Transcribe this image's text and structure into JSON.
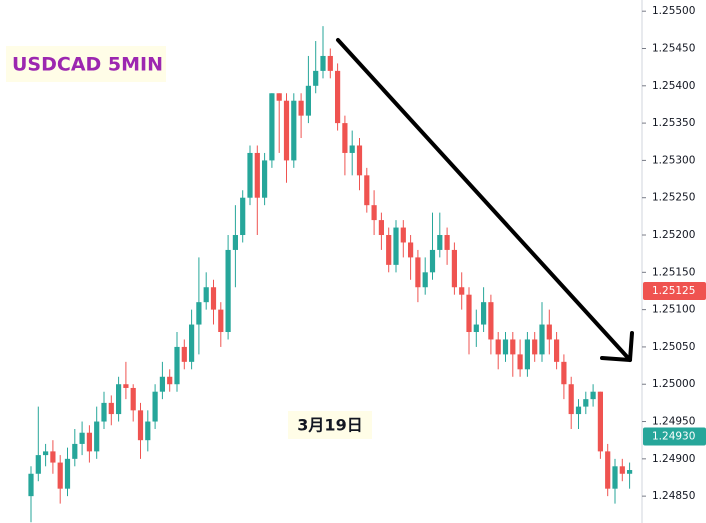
{
  "chart_data": {
    "type": "candlestick",
    "title": "USDCAD 5MIN",
    "annotation": "3月19日",
    "up_color": "#26a69a",
    "down_color": "#ef5350",
    "ylim": [
      1.24814,
      1.25515
    ],
    "yticks": [
      {
        "value": 1.255,
        "label": "1.25500"
      },
      {
        "value": 1.2545,
        "label": "1.25450"
      },
      {
        "value": 1.254,
        "label": "1.25400"
      },
      {
        "value": 1.2535,
        "label": "1.25350"
      },
      {
        "value": 1.253,
        "label": "1.25300"
      },
      {
        "value": 1.2525,
        "label": "1.25250"
      },
      {
        "value": 1.252,
        "label": "1.25200"
      },
      {
        "value": 1.2515,
        "label": "1.25150"
      },
      {
        "value": 1.251,
        "label": "1.25100"
      },
      {
        "value": 1.2505,
        "label": "1.25050"
      },
      {
        "value": 1.25,
        "label": "1.25000"
      },
      {
        "value": 1.2495,
        "label": "1.24950"
      },
      {
        "value": 1.249,
        "label": "1.24900"
      },
      {
        "value": 1.2485,
        "label": "1.24850"
      }
    ],
    "price_labels": [
      {
        "value": 1.25125,
        "label": "1.25125",
        "color": "#ef5350"
      },
      {
        "value": 1.2493,
        "label": "1.24930",
        "color": "#26a69a"
      }
    ],
    "candles": [
      [
        1.2485,
        1.2489,
        1.24815,
        1.2488
      ],
      [
        1.2488,
        1.2497,
        1.2487,
        1.24905
      ],
      [
        1.24905,
        1.2492,
        1.2489,
        1.2491
      ],
      [
        1.2491,
        1.24925,
        1.2488,
        1.24895
      ],
      [
        1.24895,
        1.24905,
        1.2484,
        1.2486
      ],
      [
        1.2486,
        1.24915,
        1.2485,
        1.249
      ],
      [
        1.249,
        1.2494,
        1.2489,
        1.2492
      ],
      [
        1.2492,
        1.2495,
        1.24905,
        1.24935
      ],
      [
        1.24935,
        1.24945,
        1.24895,
        1.2491
      ],
      [
        1.2491,
        1.2497,
        1.249,
        1.2495
      ],
      [
        1.2495,
        1.2499,
        1.2494,
        1.24975
      ],
      [
        1.24975,
        1.24985,
        1.24945,
        1.2496
      ],
      [
        1.2496,
        1.2501,
        1.2495,
        1.25
      ],
      [
        1.25,
        1.2503,
        1.2498,
        1.24995
      ],
      [
        1.24995,
        1.25,
        1.2495,
        1.24965
      ],
      [
        1.24965,
        1.24975,
        1.249,
        1.24925
      ],
      [
        1.24925,
        1.24965,
        1.2491,
        1.2495
      ],
      [
        1.2495,
        1.25,
        1.2494,
        1.2499
      ],
      [
        1.2499,
        1.2503,
        1.2498,
        1.2501
      ],
      [
        1.2501,
        1.2502,
        1.2499,
        1.25
      ],
      [
        1.25,
        1.2507,
        1.2499,
        1.2505
      ],
      [
        1.2505,
        1.2506,
        1.2502,
        1.2503
      ],
      [
        1.2503,
        1.251,
        1.2502,
        1.2508
      ],
      [
        1.2508,
        1.2517,
        1.2504,
        1.2511
      ],
      [
        1.2511,
        1.2515,
        1.251,
        1.2513
      ],
      [
        1.2513,
        1.2514,
        1.2508,
        1.251
      ],
      [
        1.251,
        1.2511,
        1.2505,
        1.2507
      ],
      [
        1.2507,
        1.252,
        1.2506,
        1.2518
      ],
      [
        1.2518,
        1.2524,
        1.2513,
        1.252
      ],
      [
        1.252,
        1.2526,
        1.2519,
        1.2525
      ],
      [
        1.2525,
        1.2532,
        1.2524,
        1.2531
      ],
      [
        1.2531,
        1.2532,
        1.252,
        1.2525
      ],
      [
        1.2525,
        1.2531,
        1.2524,
        1.253
      ],
      [
        1.253,
        1.2539,
        1.2529,
        1.2539
      ],
      [
        1.2539,
        1.2539,
        1.2531,
        1.2538
      ],
      [
        1.2538,
        1.2539,
        1.2527,
        1.253
      ],
      [
        1.253,
        1.2539,
        1.2529,
        1.2538
      ],
      [
        1.2538,
        1.2539,
        1.2533,
        1.2536
      ],
      [
        1.2536,
        1.2544,
        1.2535,
        1.254
      ],
      [
        1.254,
        1.2546,
        1.2539,
        1.2542
      ],
      [
        1.2542,
        1.2548,
        1.2541,
        1.2544
      ],
      [
        1.2544,
        1.2545,
        1.2541,
        1.2542
      ],
      [
        1.2542,
        1.2543,
        1.2534,
        1.2535
      ],
      [
        1.2535,
        1.2536,
        1.2528,
        1.2531
      ],
      [
        1.2531,
        1.2534,
        1.2528,
        1.2532
      ],
      [
        1.2532,
        1.2533,
        1.2526,
        1.2528
      ],
      [
        1.2528,
        1.2529,
        1.2523,
        1.2524
      ],
      [
        1.2524,
        1.2526,
        1.252,
        1.2522
      ],
      [
        1.2522,
        1.2523,
        1.2518,
        1.252
      ],
      [
        1.252,
        1.2521,
        1.2515,
        1.2516
      ],
      [
        1.2516,
        1.2522,
        1.2515,
        1.2521
      ],
      [
        1.2521,
        1.2522,
        1.2517,
        1.2519
      ],
      [
        1.2519,
        1.252,
        1.2514,
        1.2517
      ],
      [
        1.2517,
        1.2518,
        1.2511,
        1.2513
      ],
      [
        1.2513,
        1.2517,
        1.2512,
        1.2515
      ],
      [
        1.2515,
        1.2523,
        1.2514,
        1.2518
      ],
      [
        1.2518,
        1.2523,
        1.2517,
        1.252
      ],
      [
        1.252,
        1.2521,
        1.2516,
        1.2518
      ],
      [
        1.2518,
        1.2519,
        1.2512,
        1.2513
      ],
      [
        1.2513,
        1.2515,
        1.251,
        1.2512
      ],
      [
        1.2512,
        1.2513,
        1.2504,
        1.2507
      ],
      [
        1.2507,
        1.251,
        1.2505,
        1.2508
      ],
      [
        1.2508,
        1.2513,
        1.2507,
        1.2511
      ],
      [
        1.2511,
        1.2512,
        1.2504,
        1.2506
      ],
      [
        1.2506,
        1.2507,
        1.2502,
        1.2504
      ],
      [
        1.2504,
        1.2507,
        1.2503,
        1.2506
      ],
      [
        1.2506,
        1.2507,
        1.2501,
        1.2504
      ],
      [
        1.2504,
        1.2506,
        1.2501,
        1.2502
      ],
      [
        1.2502,
        1.2507,
        1.2501,
        1.2506
      ],
      [
        1.2506,
        1.2507,
        1.2503,
        1.2504
      ],
      [
        1.2504,
        1.2511,
        1.2503,
        1.2508
      ],
      [
        1.2508,
        1.251,
        1.2504,
        1.2506
      ],
      [
        1.2506,
        1.2507,
        1.2502,
        1.2503
      ],
      [
        1.2503,
        1.2504,
        1.2498,
        1.25
      ],
      [
        1.25,
        1.2501,
        1.2494,
        1.2496
      ],
      [
        1.2496,
        1.2498,
        1.2494,
        1.2497
      ],
      [
        1.2497,
        1.2499,
        1.2496,
        1.2498
      ],
      [
        1.2498,
        1.25,
        1.2497,
        1.2499
      ],
      [
        1.2499,
        1.2499,
        1.249,
        1.2491
      ],
      [
        1.2491,
        1.2492,
        1.2485,
        1.2486
      ],
      [
        1.2486,
        1.249,
        1.2484,
        1.2489
      ],
      [
        1.2489,
        1.249,
        1.2487,
        1.2488
      ],
      [
        1.2488,
        1.24895,
        1.2486,
        1.24885
      ]
    ]
  }
}
